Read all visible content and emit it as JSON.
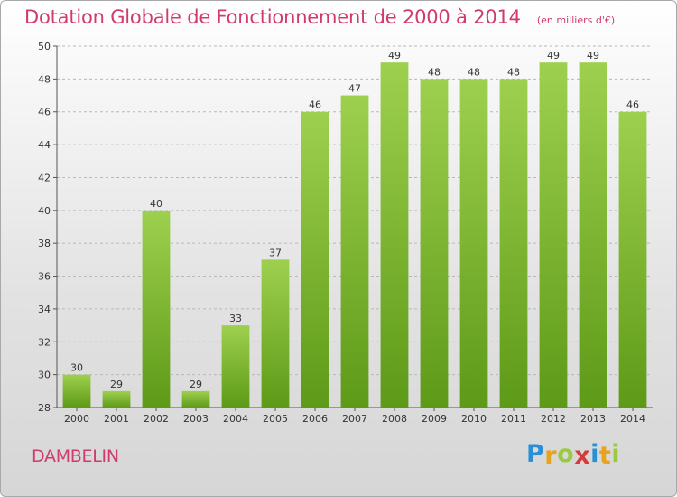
{
  "chart_data": {
    "type": "bar",
    "title": "Dotation Globale de Fonctionnement de 2000 à 2014",
    "unit_note": "(en milliers d'€)",
    "xlabel": "",
    "ylabel": "",
    "categories": [
      "2000",
      "2001",
      "2002",
      "2003",
      "2004",
      "2005",
      "2006",
      "2007",
      "2008",
      "2009",
      "2010",
      "2011",
      "2012",
      "2013",
      "2014"
    ],
    "values": [
      30,
      29,
      40,
      29,
      33,
      37,
      46,
      47,
      49,
      48,
      48,
      48,
      49,
      49,
      46
    ],
    "ylim": [
      28,
      50
    ],
    "yticks": [
      28,
      30,
      32,
      34,
      36,
      38,
      40,
      42,
      44,
      46,
      48,
      50
    ],
    "grid": true,
    "bar_color_top": "#9ed04f",
    "bar_color_bottom": "#5d9a17",
    "text_color": "#d03a6e"
  },
  "footer": {
    "commune": "DAMBELIN",
    "logo_letters": [
      {
        "ch": "P",
        "color": "#2b8fd6"
      },
      {
        "ch": "r",
        "color": "#e8a21c"
      },
      {
        "ch": "o",
        "color": "#9acb3c"
      },
      {
        "ch": "x",
        "color": "#d63a3a"
      },
      {
        "ch": "i",
        "color": "#2b8fd6"
      },
      {
        "ch": "t",
        "color": "#e8a21c"
      },
      {
        "ch": "i",
        "color": "#9acb3c"
      }
    ]
  }
}
